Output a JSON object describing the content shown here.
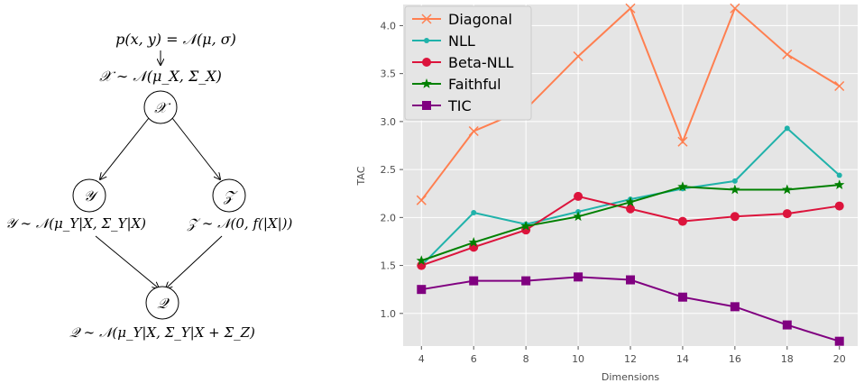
{
  "diagram": {
    "top_formula": "p(x, y) = 𝒩(μ, σ)",
    "nodes": [
      {
        "id": "X",
        "symbol": "𝒳",
        "formula": "𝒳 ∼ 𝒩(μ_X, Σ_X)"
      },
      {
        "id": "Y",
        "symbol": "𝒴",
        "formula": "𝒴 ∼ 𝒩(μ_Y|X, Σ_Y|X)"
      },
      {
        "id": "Z",
        "symbol": "𝒵",
        "formula": "𝒵 ∼ 𝒩(0, f(|X|))"
      },
      {
        "id": "Q",
        "symbol": "𝒬",
        "formula": "𝒬 ∼ 𝒩(μ_Y|X, Σ_Y|X + Σ_Z)"
      }
    ]
  },
  "chart_data": {
    "type": "line",
    "title": "",
    "xlabel": "Dimensions",
    "ylabel": "TAC",
    "x": [
      4,
      6,
      8,
      10,
      12,
      14,
      16,
      18,
      20
    ],
    "xlim": [
      3.3,
      20.7
    ],
    "ylim": [
      0.66,
      4.22
    ],
    "xticks": [
      "4",
      "6",
      "8",
      "10",
      "12",
      "14",
      "16",
      "18",
      "20"
    ],
    "yticks": [
      "1.0",
      "1.5",
      "2.0",
      "2.5",
      "3.0",
      "3.5",
      "4.0"
    ],
    "ytick_values": [
      1.0,
      1.5,
      2.0,
      2.5,
      3.0,
      3.5,
      4.0
    ],
    "grid": true,
    "legend_position": "top-left",
    "series": [
      {
        "name": "Diagonal",
        "color": "#ff7f50",
        "marker": "x",
        "values": [
          2.18,
          2.9,
          3.13,
          3.68,
          4.18,
          2.79,
          4.18,
          3.7,
          3.37
        ]
      },
      {
        "name": "NLL",
        "color": "#20b2aa",
        "marker": "dot",
        "values": [
          1.5,
          2.05,
          1.93,
          2.06,
          2.19,
          2.3,
          2.38,
          2.93,
          2.44
        ]
      },
      {
        "name": "Beta-NLL",
        "color": "#dc143c",
        "marker": "circle",
        "values": [
          1.5,
          1.69,
          1.87,
          2.22,
          2.09,
          1.96,
          2.01,
          2.04,
          2.12
        ]
      },
      {
        "name": "Faithful",
        "color": "#008000",
        "marker": "star",
        "values": [
          1.55,
          1.74,
          1.91,
          2.01,
          2.16,
          2.32,
          2.29,
          2.29,
          2.34
        ]
      },
      {
        "name": "TIC",
        "color": "#800080",
        "marker": "square",
        "values": [
          1.25,
          1.34,
          1.34,
          1.38,
          1.35,
          1.17,
          1.07,
          0.88,
          0.71
        ]
      }
    ]
  }
}
